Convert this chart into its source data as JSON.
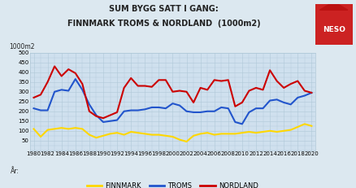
{
  "title_line1": "SUM BYGG SATT I GANG:",
  "title_line2": "FINNMARK TROMS & NORDLAND  (1000m2)",
  "ylabel": "1000m2",
  "xlabel": "År:",
  "years": [
    1980,
    1981,
    1982,
    1983,
    1984,
    1985,
    1986,
    1987,
    1988,
    1989,
    1990,
    1991,
    1992,
    1993,
    1994,
    1995,
    1996,
    1997,
    1998,
    1999,
    2000,
    2001,
    2002,
    2003,
    2004,
    2005,
    2006,
    2007,
    2008,
    2009,
    2010,
    2011,
    2012,
    2013,
    2014,
    2015,
    2016,
    2017,
    2018,
    2019,
    2020
  ],
  "finnmark": [
    110,
    70,
    105,
    110,
    115,
    110,
    115,
    110,
    80,
    65,
    75,
    85,
    90,
    80,
    95,
    90,
    85,
    80,
    80,
    75,
    70,
    55,
    45,
    75,
    85,
    90,
    80,
    85,
    85,
    85,
    90,
    95,
    90,
    95,
    100,
    95,
    100,
    105,
    120,
    135,
    125
  ],
  "troms": [
    215,
    205,
    205,
    300,
    310,
    305,
    365,
    310,
    235,
    180,
    145,
    150,
    155,
    200,
    205,
    205,
    210,
    220,
    220,
    215,
    240,
    230,
    200,
    195,
    195,
    200,
    200,
    220,
    215,
    145,
    135,
    195,
    215,
    215,
    255,
    260,
    245,
    235,
    270,
    280,
    295
  ],
  "nordland": [
    270,
    285,
    350,
    430,
    380,
    415,
    395,
    340,
    200,
    175,
    165,
    180,
    195,
    320,
    370,
    330,
    330,
    325,
    360,
    360,
    300,
    305,
    300,
    245,
    320,
    310,
    360,
    355,
    360,
    225,
    245,
    305,
    320,
    310,
    410,
    355,
    320,
    340,
    355,
    305,
    295
  ],
  "finnmark_color": "#FFD700",
  "troms_color": "#2255CC",
  "nordland_color": "#CC0000",
  "bg_color": "#cfe0ee",
  "fig_bg_color": "#dce8f0",
  "grid_color": "#b0c8d8",
  "ylim": [
    0,
    500
  ],
  "yticks": [
    50,
    100,
    150,
    200,
    250,
    300,
    350,
    400,
    450,
    500
  ],
  "xtick_years": [
    1980,
    1982,
    1984,
    1986,
    1988,
    1990,
    1992,
    1994,
    1996,
    1998,
    2000,
    2002,
    2004,
    2006,
    2008,
    2010,
    2012,
    2014,
    2016,
    2018,
    2020
  ],
  "legend_labels": [
    "FINNMARK",
    "TROMS",
    "NORDLAND"
  ],
  "linewidth": 1.5,
  "title_fontsize": 7.0,
  "tick_fontsize": 5.0,
  "label_fontsize": 5.5,
  "legend_fontsize": 6.0
}
